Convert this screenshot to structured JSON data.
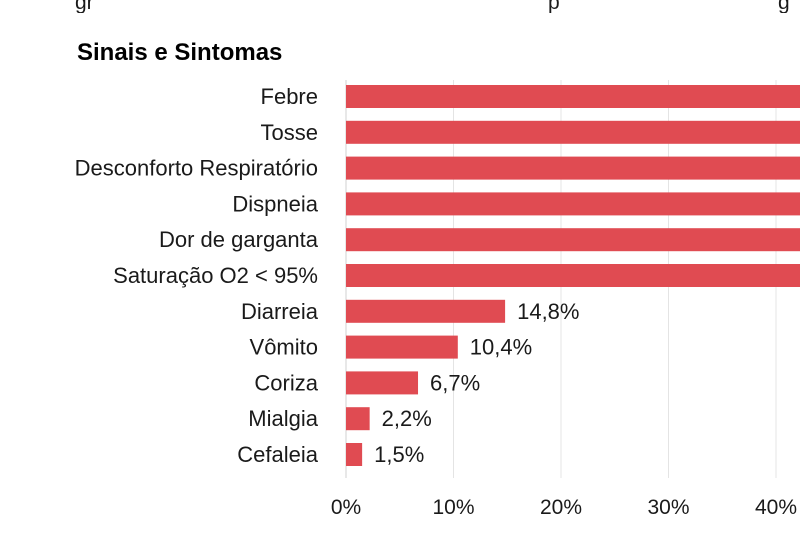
{
  "header_fragments": [
    "gr",
    "p",
    "g"
  ],
  "chart_data": {
    "type": "bar",
    "orientation": "horizontal",
    "title": "Sinais e Sintomas",
    "categories": [
      "Febre",
      "Tosse",
      "Desconforto Respiratório",
      "Dispneia",
      "Dor de garganta",
      "Saturação O2 < 95%",
      "Diarreia",
      "Vômito",
      "Coriza",
      "Mialgia",
      "Cefaleia"
    ],
    "values": [
      null,
      null,
      null,
      null,
      null,
      null,
      14.8,
      10.4,
      6.7,
      2.2,
      1.5
    ],
    "data_labels": [
      "",
      "",
      "",
      "",
      "",
      "",
      "14,8%",
      "10,4%",
      "6,7%",
      "2,2%",
      "1,5%"
    ],
    "x_ticks": [
      "0%",
      "10%",
      "20%",
      "30%",
      "40%"
    ],
    "xlim": [
      0,
      40
    ],
    "bar_color": "#e04b52",
    "grid": true
  }
}
